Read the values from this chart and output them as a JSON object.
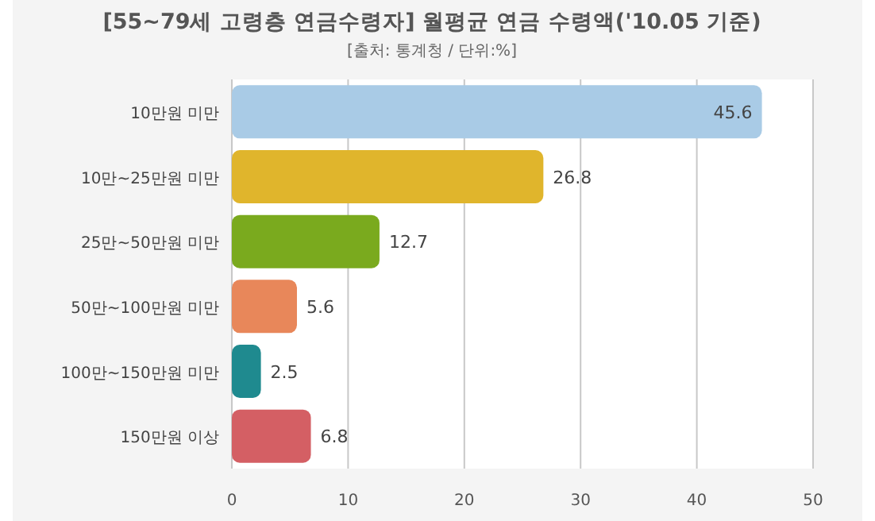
{
  "chart_data": {
    "type": "bar",
    "orientation": "horizontal",
    "title": "[55~79세 고령층 연금수령자] 월평균 연금 수령액('10.05 기준)",
    "subtitle": "[출처: 통계청 / 단위:%]",
    "categories": [
      "10만원 미만",
      "10만~25만원 미만",
      "25만~50만원 미만",
      "50만~100만원 미만",
      "100만~150만원 미만",
      "150만원 이상"
    ],
    "values": [
      45.6,
      26.8,
      12.7,
      5.6,
      2.5,
      6.8
    ],
    "colors": [
      "#a9cbe6",
      "#e0b52c",
      "#7aaa1e",
      "#e8875a",
      "#1f8a8f",
      "#d45f64"
    ],
    "xlim": [
      0,
      50
    ],
    "xticks": [
      0,
      10,
      20,
      30,
      40,
      50
    ],
    "grid": "x",
    "data_labels": true
  }
}
